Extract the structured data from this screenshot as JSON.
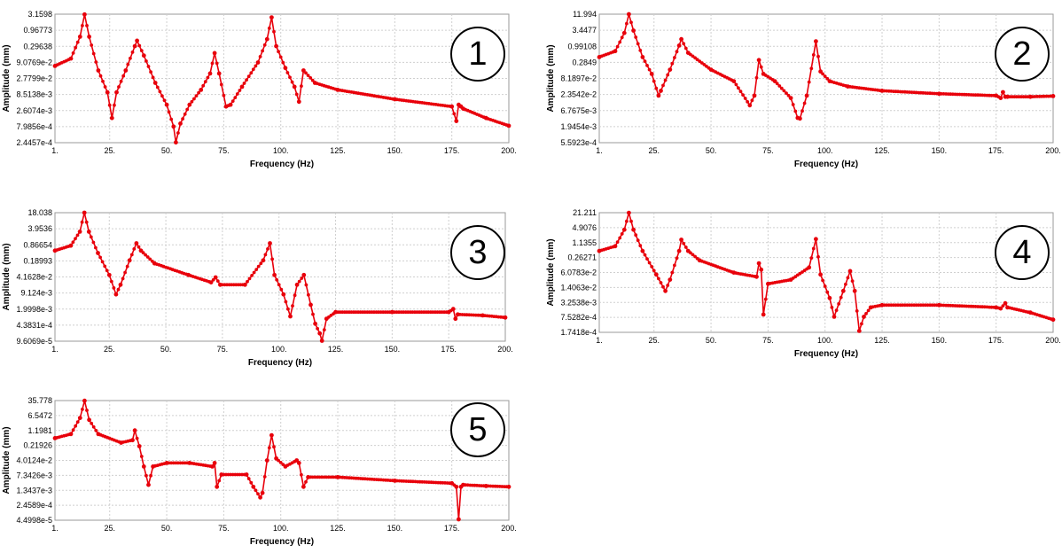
{
  "chart_data": [
    {
      "type": "line",
      "panel_label": "1",
      "xlabel": "Frequency (Hz)",
      "ylabel": "Amplitude (mm)",
      "xlim": [
        1,
        200
      ],
      "x_ticks": [
        "1.",
        "25.",
        "50.",
        "75.",
        "100.",
        "125.",
        "150.",
        "175.",
        "200."
      ],
      "y_scale": "log",
      "ylim": [
        0.00024457,
        3.1598
      ],
      "y_ticks": [
        "3.1598",
        "0.96773",
        "0.29638",
        "9.0769e-2",
        "2.7799e-2",
        "8.5138e-3",
        "2.6074e-3",
        "7.9856e-4",
        "2.4457e-4"
      ],
      "series_color": "#e8000b",
      "grid": true,
      "series": [
        {
          "x": [
            1,
            8,
            12,
            14,
            16,
            20,
            24,
            26,
            28,
            32,
            36,
            37,
            40,
            45,
            50,
            53,
            54,
            56,
            60,
            65,
            69,
            71,
            73,
            76,
            78,
            83,
            90,
            94,
            96,
            98,
            102,
            106,
            108,
            110,
            115,
            125,
            150,
            175,
            177,
            178,
            179,
            180,
            190,
            200
          ],
          "y": [
            0.07,
            0.12,
            0.6,
            3.1,
            0.6,
            0.05,
            0.01,
            0.0015,
            0.01,
            0.05,
            0.3,
            0.45,
            0.15,
            0.02,
            0.004,
            0.0008,
            0.00025,
            0.001,
            0.004,
            0.012,
            0.04,
            0.18,
            0.04,
            0.0035,
            0.004,
            0.015,
            0.09,
            0.5,
            2.5,
            0.3,
            0.06,
            0.015,
            0.005,
            0.05,
            0.02,
            0.012,
            0.006,
            0.0035,
            0.0012,
            0.004,
            0.0035,
            0.003,
            0.0015,
            0.00085
          ]
        }
      ]
    },
    {
      "type": "line",
      "panel_label": "2",
      "xlabel": "Frequency (Hz)",
      "ylabel": "Amplitude (mm)",
      "xlim": [
        1,
        200
      ],
      "x_ticks": [
        "1.",
        "25.",
        "50.",
        "75.",
        "100.",
        "125.",
        "150.",
        "175.",
        "200."
      ],
      "y_scale": "log",
      "ylim": [
        5.5923e-05,
        11.994
      ],
      "y_ticks": [
        "11.994",
        "3.4477",
        "0.99108",
        "0.2849",
        "8.1897e-2",
        "2.3542e-2",
        "6.7675e-3",
        "1.9454e-3",
        "5.5923e-4"
      ],
      "series_color": "#e8000b",
      "grid": true,
      "series": [
        {
          "x": [
            1,
            8,
            12,
            14,
            16,
            20,
            24,
            27,
            28,
            32,
            36,
            37,
            40,
            50,
            60,
            67,
            69,
            71,
            73,
            78,
            85,
            88,
            89,
            92,
            96,
            98,
            102,
            110,
            125,
            150,
            175,
            177,
            178,
            179,
            180,
            190,
            200
          ],
          "y": [
            0.2,
            0.35,
            2,
            12,
            2.5,
            0.2,
            0.04,
            0.005,
            0.008,
            0.06,
            0.6,
            1.1,
            0.3,
            0.06,
            0.02,
            0.002,
            0.005,
            0.15,
            0.04,
            0.02,
            0.004,
            0.0006,
            0.00056,
            0.005,
            0.9,
            0.05,
            0.02,
            0.012,
            0.008,
            0.006,
            0.005,
            0.004,
            0.007,
            0.0045,
            0.0045,
            0.0045,
            0.0048
          ]
        }
      ]
    },
    {
      "type": "line",
      "panel_label": "3",
      "xlabel": "Frequency (Hz)",
      "ylabel": "Amplitude (mm)",
      "xlim": [
        1,
        200
      ],
      "x_ticks": [
        "1.",
        "25.",
        "50.",
        "75.",
        "100.",
        "125.",
        "150.",
        "175.",
        "200."
      ],
      "y_scale": "log",
      "ylim": [
        9.6069e-05,
        18.038
      ],
      "y_ticks": [
        "18.038",
        "3.9536",
        "0.86654",
        "0.18993",
        "4.1628e-2",
        "9.124e-3",
        "1.9998e-3",
        "4.3831e-4",
        "9.6069e-5"
      ],
      "series_color": "#e8000b",
      "grid": true,
      "series": [
        {
          "x": [
            1,
            8,
            12,
            14,
            16,
            20,
            25,
            28,
            30,
            34,
            37,
            39,
            45,
            60,
            70,
            72,
            74,
            85,
            93,
            96,
            98,
            102,
            105,
            108,
            111,
            114,
            116,
            118,
            119,
            121,
            125,
            150,
            175,
            177,
            178,
            179,
            190,
            200
          ],
          "y": [
            0.5,
            0.8,
            3,
            18,
            3,
            0.4,
            0.05,
            0.008,
            0.02,
            0.2,
            1,
            0.5,
            0.15,
            0.05,
            0.025,
            0.04,
            0.02,
            0.02,
            0.2,
            1,
            0.05,
            0.008,
            0.001,
            0.02,
            0.05,
            0.003,
            0.0005,
            0.0002,
            0.0001,
            0.0008,
            0.0015,
            0.0015,
            0.0015,
            0.002,
            0.0008,
            0.0012,
            0.0011,
            0.0009
          ]
        }
      ]
    },
    {
      "type": "line",
      "panel_label": "4",
      "xlabel": "Frequency (Hz)",
      "ylabel": "Amplitude (mm)",
      "xlim": [
        1,
        200
      ],
      "x_ticks": [
        "1.",
        "25.",
        "50.",
        "75.",
        "100.",
        "125.",
        "150.",
        "175.",
        "200."
      ],
      "y_scale": "log",
      "ylim": [
        0.00017418,
        21.211
      ],
      "y_ticks": [
        "21.211",
        "4.9076",
        "1.1355",
        "0.26271",
        "6.0783e-2",
        "1.4063e-2",
        "3.2538e-3",
        "7.5282e-4",
        "1.7418e-4"
      ],
      "series_color": "#e8000b",
      "grid": true,
      "series": [
        {
          "x": [
            1,
            8,
            12,
            14,
            16,
            20,
            26,
            30,
            32,
            36,
            37,
            40,
            45,
            60,
            70,
            71,
            72,
            73,
            75,
            85,
            93,
            96,
            98,
            102,
            104,
            108,
            111,
            113,
            115,
            117,
            120,
            125,
            150,
            175,
            177,
            179,
            180,
            190,
            200
          ],
          "y": [
            0.5,
            0.8,
            4,
            21,
            4,
            0.5,
            0.05,
            0.01,
            0.03,
            0.5,
            1.5,
            0.5,
            0.2,
            0.06,
            0.04,
            0.15,
            0.08,
            0.001,
            0.02,
            0.03,
            0.1,
            1.6,
            0.05,
            0.005,
            0.0008,
            0.01,
            0.07,
            0.01,
            0.0002,
            0.0008,
            0.002,
            0.0025,
            0.0025,
            0.002,
            0.0018,
            0.003,
            0.002,
            0.0012,
            0.0006
          ]
        }
      ]
    },
    {
      "type": "line",
      "panel_label": "5",
      "xlabel": "Frequency (Hz)",
      "ylabel": "Amplitude (mm)",
      "xlim": [
        1,
        200
      ],
      "x_ticks": [
        "1.",
        "25.",
        "50.",
        "75.",
        "100.",
        "125.",
        "150.",
        "175.",
        "200."
      ],
      "y_scale": "log",
      "ylim": [
        4.4998e-05,
        35.778
      ],
      "y_ticks": [
        "35.778",
        "6.5472",
        "1.1981",
        "0.21926",
        "4.0124e-2",
        "7.3426e-3",
        "1.3437e-3",
        "2.4589e-4",
        "4.4998e-5"
      ],
      "series_color": "#e8000b",
      "grid": true,
      "series": [
        {
          "x": [
            1,
            8,
            12,
            14,
            16,
            20,
            30,
            35,
            36,
            38,
            40,
            42,
            44,
            50,
            60,
            70,
            71,
            72,
            74,
            85,
            88,
            91,
            92,
            94,
            96,
            98,
            102,
            107,
            108,
            110,
            112,
            125,
            150,
            175,
            177,
            178,
            179,
            180,
            190,
            200
          ],
          "y": [
            0.5,
            0.8,
            5,
            35,
            4,
            0.8,
            0.3,
            0.4,
            1.2,
            0.2,
            0.02,
            0.0025,
            0.02,
            0.03,
            0.03,
            0.02,
            0.03,
            0.002,
            0.008,
            0.008,
            0.002,
            0.0006,
            0.001,
            0.04,
            0.7,
            0.05,
            0.02,
            0.04,
            0.03,
            0.002,
            0.006,
            0.006,
            0.004,
            0.003,
            0.002,
            5e-05,
            0.002,
            0.0025,
            0.0022,
            0.002
          ]
        }
      ]
    }
  ]
}
